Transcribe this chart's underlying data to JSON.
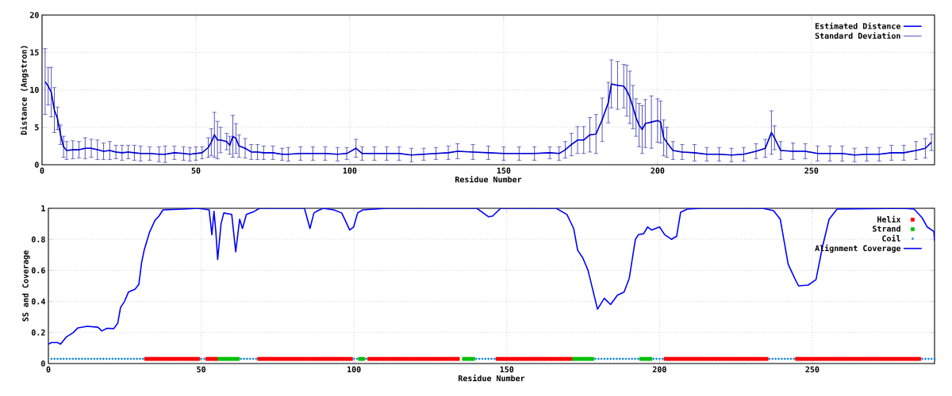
{
  "chart_data": [
    {
      "type": "line",
      "xlabel": "Residue Number",
      "ylabel": "Distance (Angstron)",
      "xlim": [
        0,
        290
      ],
      "ylim": [
        0,
        20
      ],
      "xticks": [
        0,
        50,
        100,
        150,
        200,
        250
      ],
      "yticks": [
        0,
        5,
        10,
        15,
        20
      ],
      "grid": true,
      "legend": "top right",
      "series": [
        {
          "name": "Estimated Distance",
          "color": "#0000ff",
          "x": [
            1,
            2,
            3,
            4,
            5,
            6,
            7,
            8,
            10,
            12,
            14,
            16,
            18,
            20,
            22,
            24,
            26,
            28,
            30,
            32,
            35,
            38,
            40,
            43,
            46,
            48,
            50,
            52,
            54,
            55,
            56,
            57,
            58,
            60,
            61,
            62,
            63,
            64,
            66,
            68,
            70,
            72,
            75,
            78,
            80,
            84,
            88,
            92,
            96,
            99,
            102,
            104,
            108,
            112,
            116,
            120,
            124,
            128,
            132,
            135,
            140,
            145,
            150,
            155,
            160,
            165,
            168,
            170,
            172,
            174,
            176,
            178,
            180,
            182,
            184,
            185,
            187,
            189,
            190,
            191,
            192,
            193,
            194,
            195,
            196,
            198,
            200,
            201,
            202,
            203,
            205,
            208,
            212,
            216,
            220,
            224,
            228,
            232,
            235,
            237,
            238,
            240,
            244,
            248,
            252,
            256,
            260,
            264,
            268,
            272,
            276,
            280,
            284,
            287,
            289
          ],
          "values": [
            11.1,
            10.5,
            9.7,
            7.3,
            6.2,
            4.0,
            2.4,
            1.9,
            2.0,
            2.0,
            2.2,
            2.2,
            2.0,
            1.8,
            1.9,
            1.7,
            1.6,
            1.7,
            1.6,
            1.5,
            1.5,
            1.4,
            1.4,
            1.6,
            1.5,
            1.4,
            1.5,
            1.6,
            2.3,
            3.0,
            4.0,
            3.3,
            3.3,
            3.1,
            2.6,
            3.8,
            3.5,
            2.5,
            2.2,
            1.7,
            1.7,
            1.6,
            1.6,
            1.4,
            1.4,
            1.5,
            1.5,
            1.5,
            1.4,
            1.5,
            2.2,
            1.5,
            1.5,
            1.5,
            1.5,
            1.3,
            1.4,
            1.5,
            1.6,
            1.8,
            1.7,
            1.6,
            1.5,
            1.5,
            1.5,
            1.6,
            1.5,
            2.0,
            2.7,
            3.3,
            3.3,
            4.0,
            4.1,
            6.0,
            8.3,
            10.8,
            10.6,
            10.5,
            9.9,
            9.0,
            7.7,
            6.3,
            5.3,
            4.7,
            5.5,
            5.7,
            5.9,
            5.7,
            3.6,
            3.0,
            1.9,
            1.7,
            1.6,
            1.4,
            1.4,
            1.3,
            1.4,
            1.8,
            2.2,
            4.3,
            3.6,
            1.9,
            1.8,
            1.8,
            1.5,
            1.5,
            1.5,
            1.3,
            1.4,
            1.4,
            1.6,
            1.6,
            1.9,
            2.2,
            3.0
          ]
        },
        {
          "name": "Standard Deviation",
          "color": "#000099",
          "x": [
            1,
            2,
            3,
            4,
            5,
            6,
            7,
            8,
            10,
            12,
            14,
            16,
            18,
            20,
            22,
            24,
            26,
            28,
            30,
            32,
            35,
            38,
            40,
            43,
            46,
            48,
            50,
            52,
            54,
            55,
            56,
            57,
            58,
            60,
            61,
            62,
            63,
            64,
            66,
            68,
            70,
            72,
            75,
            78,
            80,
            84,
            88,
            92,
            96,
            99,
            102,
            104,
            108,
            112,
            116,
            120,
            124,
            128,
            132,
            135,
            140,
            145,
            150,
            155,
            160,
            165,
            168,
            170,
            172,
            174,
            176,
            178,
            180,
            182,
            184,
            185,
            187,
            189,
            190,
            191,
            192,
            193,
            194,
            195,
            196,
            198,
            200,
            201,
            202,
            203,
            205,
            208,
            212,
            216,
            220,
            224,
            228,
            232,
            235,
            237,
            238,
            240,
            244,
            248,
            252,
            256,
            260,
            264,
            268,
            272,
            276,
            280,
            284,
            287,
            289
          ],
          "values": [
            11.1,
            10.5,
            9.7,
            7.3,
            6.2,
            4.0,
            2.4,
            1.9,
            2.0,
            2.0,
            2.2,
            2.2,
            2.0,
            1.8,
            1.9,
            1.7,
            1.6,
            1.7,
            1.6,
            1.5,
            1.5,
            1.4,
            1.4,
            1.6,
            1.5,
            1.4,
            1.5,
            1.6,
            2.3,
            3.0,
            4.0,
            3.3,
            3.3,
            3.1,
            2.6,
            3.8,
            3.5,
            2.5,
            2.2,
            1.7,
            1.7,
            1.6,
            1.6,
            1.4,
            1.4,
            1.5,
            1.5,
            1.5,
            1.4,
            1.5,
            2.2,
            1.5,
            1.5,
            1.5,
            1.5,
            1.3,
            1.4,
            1.5,
            1.6,
            1.8,
            1.7,
            1.6,
            1.5,
            1.5,
            1.5,
            1.6,
            1.5,
            2.0,
            2.7,
            3.3,
            3.3,
            4.0,
            4.1,
            6.0,
            8.3,
            10.8,
            10.6,
            10.5,
            9.9,
            9.0,
            7.7,
            6.3,
            5.3,
            4.7,
            5.5,
            5.7,
            5.9,
            5.7,
            3.6,
            3.0,
            1.9,
            1.7,
            1.6,
            1.4,
            1.4,
            1.3,
            1.4,
            1.8,
            2.2,
            4.3,
            3.6,
            1.9,
            1.8,
            1.8,
            1.5,
            1.5,
            1.5,
            1.3,
            1.4,
            1.4,
            1.6,
            1.6,
            1.9,
            2.2,
            3.0
          ],
          "errors": [
            4.4,
            2.5,
            3.3,
            3.0,
            1.5,
            1.3,
            1.4,
            1.2,
            1.2,
            1.1,
            1.4,
            1.2,
            1.3,
            1.1,
            1.2,
            0.9,
            1.0,
            0.9,
            1.0,
            1.0,
            0.9,
            1.0,
            1.1,
            0.9,
            0.9,
            0.9,
            0.9,
            0.8,
            1.3,
            1.8,
            3.0,
            2.5,
            1.7,
            1.1,
            1.2,
            2.8,
            2.0,
            1.5,
            1.3,
            1.0,
            1.0,
            0.9,
            0.9,
            0.8,
            0.9,
            0.9,
            0.9,
            0.9,
            0.9,
            0.8,
            1.2,
            0.9,
            0.9,
            0.9,
            0.9,
            0.9,
            0.8,
            0.8,
            0.9,
            1.0,
            1.0,
            0.9,
            0.9,
            0.9,
            0.9,
            0.8,
            0.9,
            1.1,
            1.5,
            1.8,
            1.8,
            2.3,
            2.6,
            2.9,
            2.7,
            3.2,
            3.2,
            2.9,
            3.4,
            3.5,
            2.9,
            2.5,
            2.9,
            3.2,
            3.2,
            3.5,
            2.9,
            2.8,
            2.4,
            2.0,
            1.2,
            1.0,
            1.1,
            0.9,
            0.9,
            0.9,
            0.9,
            1.0,
            1.2,
            2.9,
            1.6,
            1.2,
            1.1,
            1.0,
            1.0,
            1.0,
            1.0,
            0.9,
            0.9,
            0.9,
            1.0,
            1.0,
            1.2,
            1.3,
            1.1
          ]
        }
      ]
    },
    {
      "type": "line",
      "xlabel": "Residue Number",
      "ylabel": "SS and Coverage",
      "xlim": [
        0,
        290
      ],
      "ylim": [
        0,
        1
      ],
      "xticks": [
        0,
        50,
        100,
        150,
        200,
        250
      ],
      "yticks": [
        0,
        0.2,
        0.4,
        0.6,
        0.8,
        1
      ],
      "grid": true,
      "legend": "top right",
      "series": [
        {
          "name": "Helix",
          "type": "scatter",
          "color": "#ff0000",
          "marker": "square",
          "x": [
            32,
            33,
            34,
            35,
            36,
            37,
            38,
            39,
            40,
            41,
            42,
            43,
            44,
            45,
            46,
            47,
            48,
            49,
            52,
            53,
            54,
            55,
            69,
            70,
            71,
            72,
            73,
            74,
            75,
            76,
            77,
            78,
            79,
            80,
            81,
            82,
            83,
            84,
            85,
            86,
            87,
            88,
            89,
            90,
            91,
            92,
            93,
            94,
            95,
            96,
            97,
            98,
            99,
            105,
            106,
            107,
            108,
            109,
            110,
            111,
            112,
            113,
            114,
            115,
            116,
            117,
            118,
            119,
            120,
            121,
            122,
            123,
            124,
            125,
            126,
            127,
            128,
            129,
            130,
            131,
            132,
            133,
            134,
            147,
            148,
            149,
            150,
            151,
            152,
            153,
            154,
            155,
            156,
            157,
            158,
            159,
            160,
            161,
            162,
            163,
            164,
            165,
            166,
            167,
            168,
            169,
            170,
            171,
            202,
            203,
            204,
            205,
            206,
            207,
            208,
            209,
            210,
            211,
            212,
            213,
            214,
            215,
            216,
            217,
            218,
            219,
            220,
            221,
            222,
            223,
            224,
            225,
            226,
            227,
            228,
            229,
            230,
            231,
            232,
            233,
            234,
            235,
            245,
            246,
            247,
            248,
            249,
            250,
            251,
            252,
            253,
            254,
            255,
            256,
            257,
            258,
            259,
            260,
            261,
            262,
            263,
            264,
            265,
            266,
            267,
            268,
            269,
            270,
            271,
            272,
            273,
            274,
            275,
            276,
            277,
            278,
            279,
            280,
            281,
            282,
            283,
            284,
            285
          ],
          "values": [
            0.03,
            0.03,
            0.03,
            0.03,
            0.03,
            0.03,
            0.03,
            0.03,
            0.03,
            0.03,
            0.03,
            0.03,
            0.03,
            0.03,
            0.03,
            0.03,
            0.03,
            0.03,
            0.03,
            0.03,
            0.03,
            0.03,
            0.03,
            0.03,
            0.03,
            0.03,
            0.03,
            0.03,
            0.03,
            0.03,
            0.03,
            0.03,
            0.03,
            0.03,
            0.03,
            0.03,
            0.03,
            0.03,
            0.03,
            0.03,
            0.03,
            0.03,
            0.03,
            0.03,
            0.03,
            0.03,
            0.03,
            0.03,
            0.03,
            0.03,
            0.03,
            0.03,
            0.03,
            0.03,
            0.03,
            0.03,
            0.03,
            0.03,
            0.03,
            0.03,
            0.03,
            0.03,
            0.03,
            0.03,
            0.03,
            0.03,
            0.03,
            0.03,
            0.03,
            0.03,
            0.03,
            0.03,
            0.03,
            0.03,
            0.03,
            0.03,
            0.03,
            0.03,
            0.03,
            0.03,
            0.03,
            0.03,
            0.03,
            0.03,
            0.03,
            0.03,
            0.03,
            0.03,
            0.03,
            0.03,
            0.03,
            0.03,
            0.03,
            0.03,
            0.03,
            0.03,
            0.03,
            0.03,
            0.03,
            0.03,
            0.03,
            0.03,
            0.03,
            0.03,
            0.03,
            0.03,
            0.03,
            0.03,
            0.03,
            0.03,
            0.03,
            0.03,
            0.03,
            0.03,
            0.03,
            0.03,
            0.03,
            0.03,
            0.03,
            0.03,
            0.03,
            0.03,
            0.03,
            0.03,
            0.03,
            0.03,
            0.03,
            0.03,
            0.03,
            0.03,
            0.03,
            0.03,
            0.03,
            0.03,
            0.03,
            0.03,
            0.03,
            0.03,
            0.03,
            0.03,
            0.03,
            0.03,
            0.03,
            0.03,
            0.03,
            0.03,
            0.03,
            0.03,
            0.03,
            0.03,
            0.03,
            0.03,
            0.03,
            0.03,
            0.03,
            0.03,
            0.03,
            0.03,
            0.03,
            0.03,
            0.03,
            0.03,
            0.03,
            0.03,
            0.03,
            0.03,
            0.03,
            0.03,
            0.03,
            0.03,
            0.03,
            0.03,
            0.03,
            0.03,
            0.03,
            0.03,
            0.03,
            0.03,
            0.03,
            0.03,
            0.03,
            0.03,
            0.03
          ]
        },
        {
          "name": "Strand",
          "type": "scatter",
          "color": "#00c000",
          "marker": "square",
          "x": [
            56,
            57,
            58,
            59,
            60,
            61,
            62,
            102,
            103,
            136,
            137,
            138,
            139,
            172,
            173,
            174,
            175,
            176,
            177,
            178,
            194,
            195,
            196,
            197
          ],
          "values": [
            0.03,
            0.03,
            0.03,
            0.03,
            0.03,
            0.03,
            0.03,
            0.03,
            0.03,
            0.03,
            0.03,
            0.03,
            0.03,
            0.03,
            0.03,
            0.03,
            0.03,
            0.03,
            0.03,
            0.03,
            0.03,
            0.03,
            0.03,
            0.03
          ]
        },
        {
          "name": "Coil",
          "type": "scatter",
          "color": "#0080e0",
          "marker": "circle",
          "x": [
            1,
            2,
            3,
            4,
            5,
            6,
            7,
            8,
            9,
            10,
            11,
            12,
            13,
            14,
            15,
            16,
            17,
            18,
            19,
            20,
            21,
            22,
            23,
            24,
            25,
            26,
            27,
            28,
            29,
            30,
            31,
            50,
            51,
            63,
            64,
            65,
            66,
            67,
            68,
            100,
            101,
            104,
            140,
            141,
            142,
            143,
            144,
            145,
            146,
            179,
            180,
            181,
            182,
            183,
            184,
            185,
            186,
            187,
            188,
            189,
            190,
            191,
            192,
            193,
            198,
            199,
            200,
            201,
            236,
            237,
            238,
            239,
            240,
            241,
            242,
            243,
            244,
            286,
            287,
            288,
            289,
            290
          ],
          "values": [
            0.03,
            0.03,
            0.03,
            0.03,
            0.03,
            0.03,
            0.03,
            0.03,
            0.03,
            0.03,
            0.03,
            0.03,
            0.03,
            0.03,
            0.03,
            0.03,
            0.03,
            0.03,
            0.03,
            0.03,
            0.03,
            0.03,
            0.03,
            0.03,
            0.03,
            0.03,
            0.03,
            0.03,
            0.03,
            0.03,
            0.03,
            0.03,
            0.03,
            0.03,
            0.03,
            0.03,
            0.03,
            0.03,
            0.03,
            0.03,
            0.03,
            0.03,
            0.03,
            0.03,
            0.03,
            0.03,
            0.03,
            0.03,
            0.03,
            0.03,
            0.03,
            0.03,
            0.03,
            0.03,
            0.03,
            0.03,
            0.03,
            0.03,
            0.03,
            0.03,
            0.03,
            0.03,
            0.03,
            0.03,
            0.03,
            0.03,
            0.03,
            0.03,
            0.03,
            0.03,
            0.03,
            0.03,
            0.03,
            0.03,
            0.03,
            0.03,
            0.03,
            0.03,
            0.03,
            0.03,
            0.03,
            0.03
          ]
        },
        {
          "name": "Alignment Coverage",
          "color": "#0000ff",
          "x": [
            0,
            1,
            3,
            4,
            5.8,
            8,
            9.7,
            12.7,
            16.2,
            17.5,
            19.2,
            21.4,
            22.7,
            23.6,
            24.9,
            26.2,
            28.4,
            29.6,
            30.5,
            31.4,
            33.1,
            34.9,
            36.2,
            37.5,
            44,
            49.2,
            52.6,
            53.5,
            54.2,
            54.8,
            55.4,
            56.5,
            57.4,
            60,
            61.3,
            62.6,
            63.5,
            64.8,
            67.4,
            69.1,
            83.8,
            85.6,
            86.9,
            88.2,
            89.9,
            93.4,
            96,
            98.6,
            99.9,
            101.2,
            102.9,
            110.7,
            140.2,
            144.1,
            145.4,
            148,
            166.2,
            169.7,
            171.9,
            173.2,
            174.9,
            176.6,
            179.7,
            181.9,
            184,
            186.2,
            188.4,
            190.1,
            192.1,
            193.1,
            194.8,
            196.1,
            197.4,
            200,
            201.7,
            203.9,
            205.6,
            206.9,
            209.1,
            213.9,
            233.8,
            237.3,
            239.5,
            242.1,
            244.2,
            245.5,
            248.6,
            251.2,
            253.3,
            255.5,
            258.1,
            279.8,
            283.3,
            285.9,
            287.6,
            289.8,
            290
          ],
          "values": [
            0.125,
            0.135,
            0.135,
            0.125,
            0.17,
            0.197,
            0.23,
            0.24,
            0.234,
            0.21,
            0.227,
            0.225,
            0.26,
            0.36,
            0.4,
            0.46,
            0.48,
            0.51,
            0.65,
            0.735,
            0.846,
            0.923,
            0.95,
            0.99,
            0.995,
            1,
            0.99,
            0.83,
            0.98,
            0.85,
            0.67,
            0.9,
            0.97,
            0.96,
            0.72,
            0.93,
            0.87,
            0.96,
            0.98,
            1,
            1,
            0.87,
            0.97,
            0.985,
            1,
            0.99,
            0.97,
            0.86,
            0.88,
            0.97,
            0.99,
            1,
            1,
            0.945,
            0.95,
            1,
            1,
            0.96,
            0.87,
            0.73,
            0.68,
            0.6,
            0.35,
            0.42,
            0.38,
            0.44,
            0.46,
            0.55,
            0.8,
            0.83,
            0.836,
            0.88,
            0.86,
            0.88,
            0.83,
            0.8,
            0.82,
            0.975,
            0.995,
            1,
            1,
            0.985,
            0.93,
            0.64,
            0.55,
            0.5,
            0.505,
            0.54,
            0.75,
            0.93,
            0.995,
            1,
            0.995,
            0.94,
            0.88,
            0.85,
            0.79
          ]
        }
      ]
    }
  ]
}
